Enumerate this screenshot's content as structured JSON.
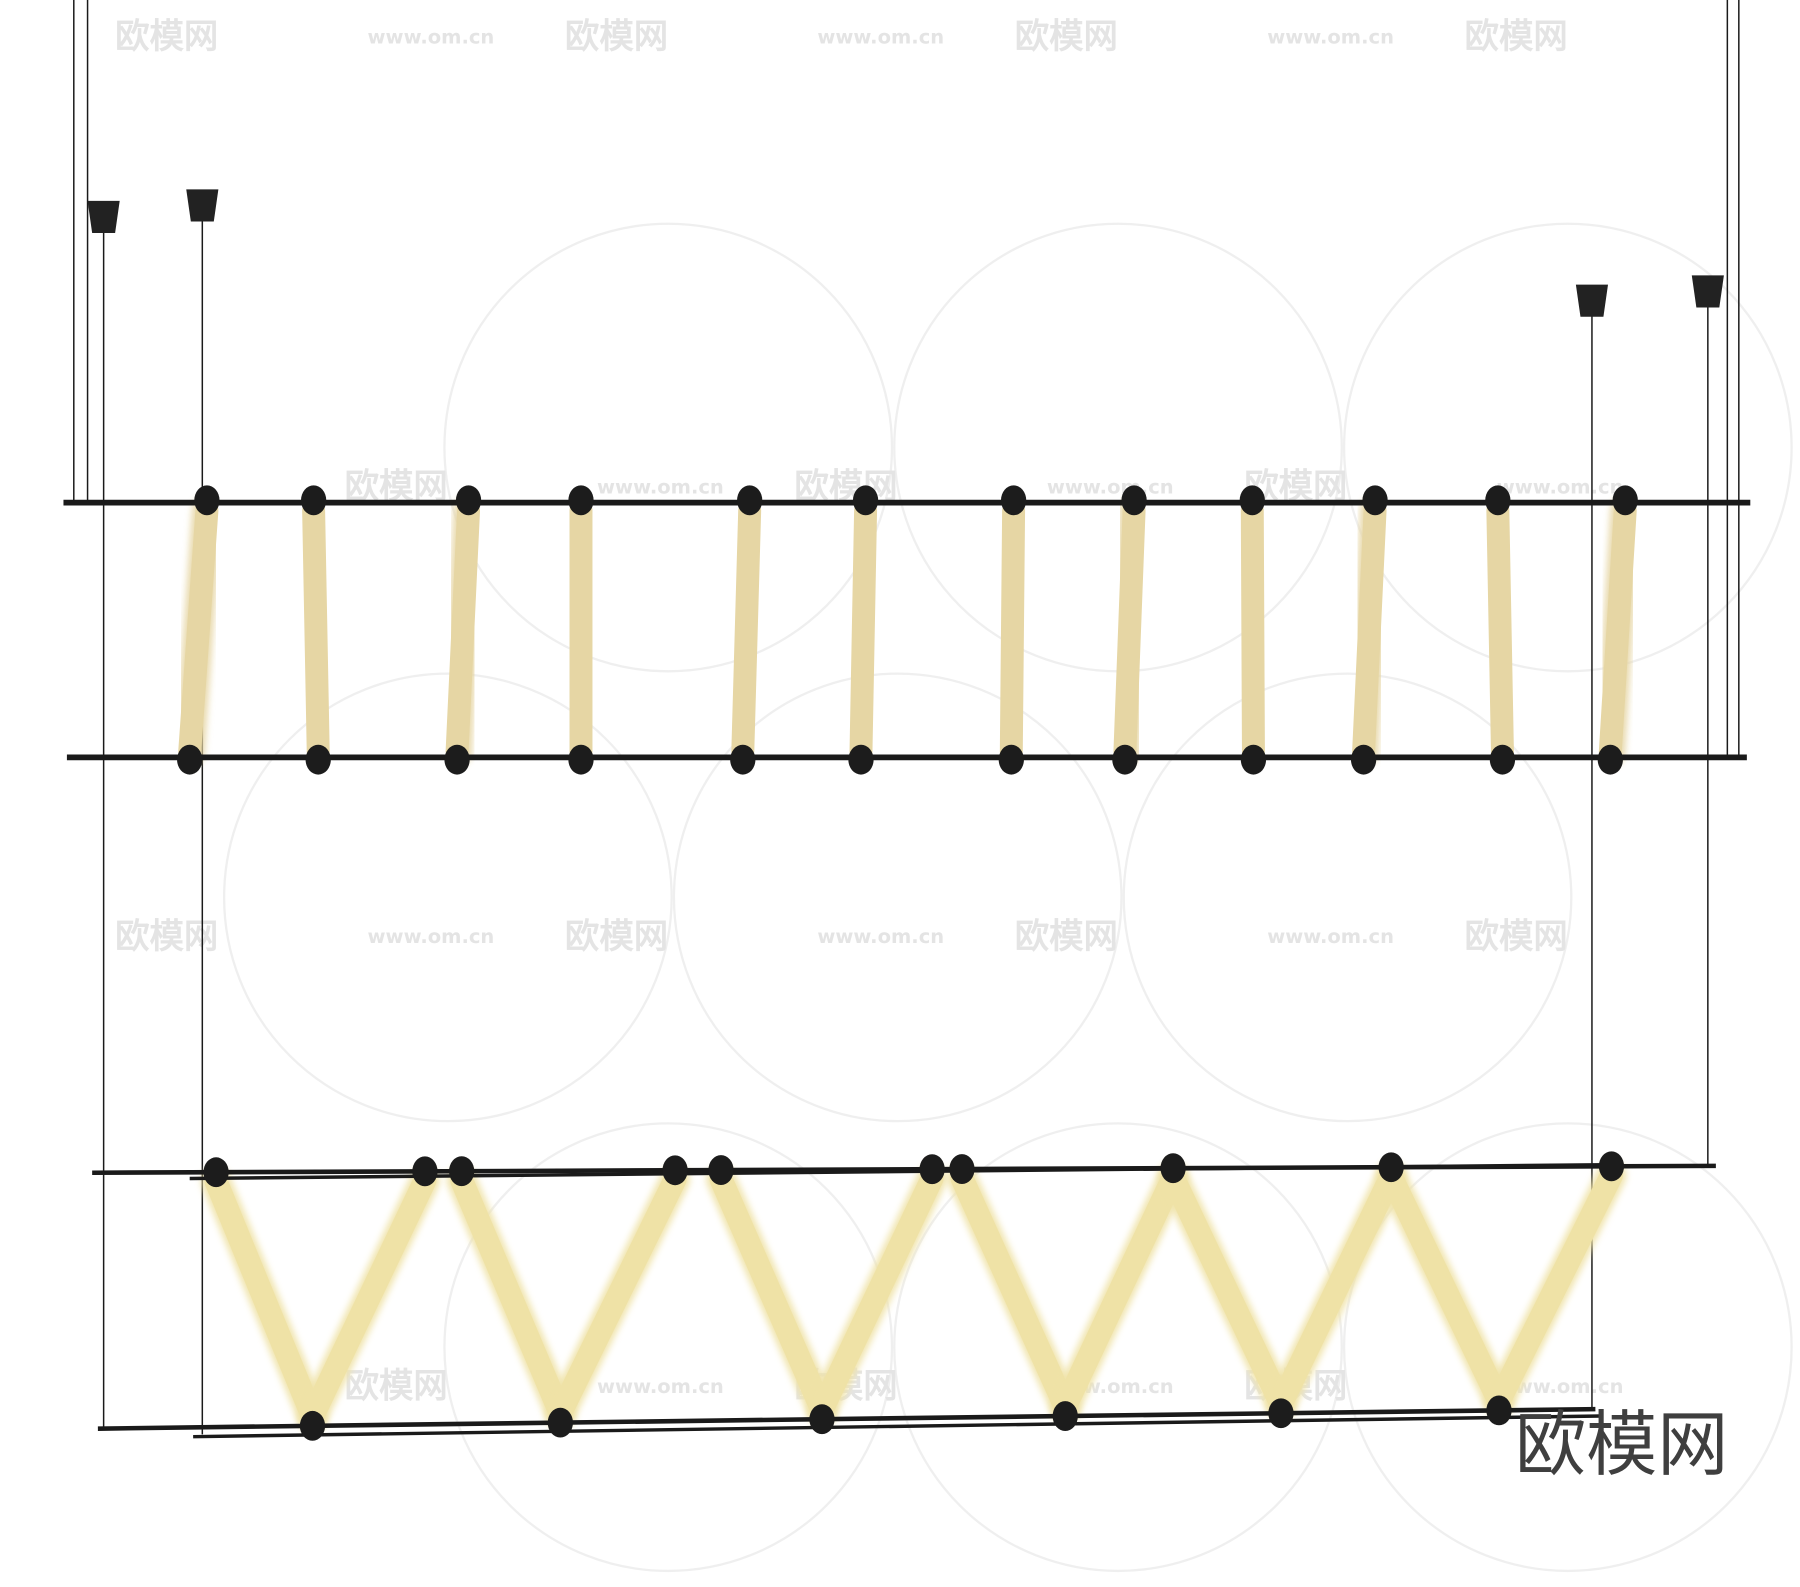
{
  "watermark": {
    "brand": "欧模网",
    "url": "www.om.cn"
  },
  "corner_logo": "欧模网",
  "colors": {
    "background": "#ffffff",
    "metal": "#1a1a1a",
    "tube_glow": "#e6d6a4",
    "tube_glow_bottom": "#efe2a6"
  },
  "products": [
    {
      "name": "vertical-tube-pendant",
      "tube_count": 12
    },
    {
      "name": "zigzag-tube-pendant",
      "tube_count": 12
    }
  ]
}
